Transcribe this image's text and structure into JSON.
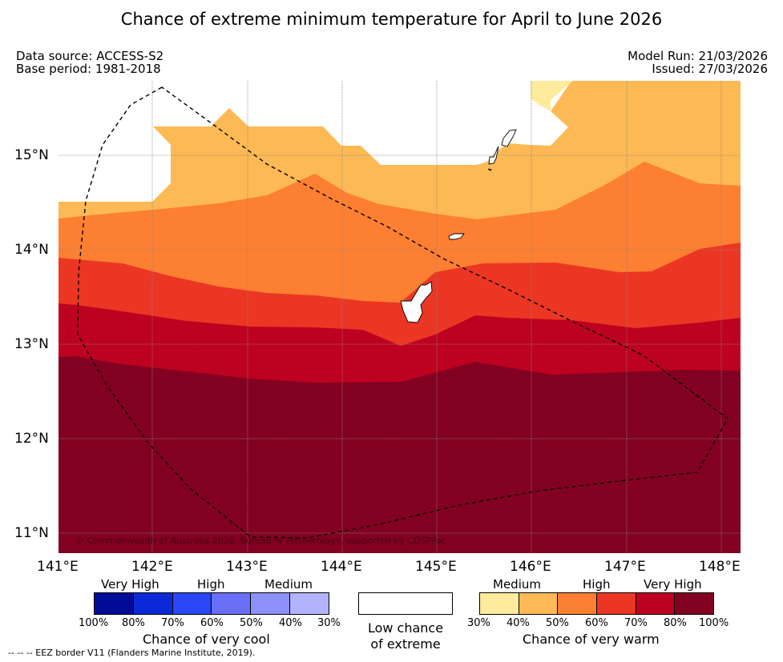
{
  "title": "Chance of extreme minimum temperature for April to June 2026",
  "meta": {
    "data_source": "Data source: ACCESS-S2",
    "base_period": "Base period: 1981-2018",
    "model_run": "Model Run: 21/03/2026",
    "issued": "Issued: 27/03/2026"
  },
  "axes": {
    "lat_labels": [
      "15°N",
      "14°N",
      "13°N",
      "12°N",
      "11°N"
    ],
    "lon_labels": [
      "141°E",
      "142°E",
      "143°E",
      "144°E",
      "145°E",
      "146°E",
      "147°E",
      "148°E"
    ]
  },
  "copyright": "© Commonwealth of Australia 2026, Bureau of Meteorology, supported by COSPPac",
  "legend": {
    "cool": {
      "categories": [
        "Very High",
        "High",
        "Medium"
      ],
      "ticks": [
        "100%",
        "80%",
        "70%",
        "60%",
        "50%",
        "40%",
        "30%"
      ],
      "colors": [
        "#000c96",
        "#0a2ad8",
        "#2b46f4",
        "#6a6ff8",
        "#8e90fa",
        "#b2b3fc"
      ],
      "title": "Chance of very cool"
    },
    "neutral": {
      "title_line1": "Low chance",
      "title_line2": "of extreme",
      "color": "#ffffff"
    },
    "warm": {
      "categories": [
        "Medium",
        "High",
        "Very High"
      ],
      "ticks": [
        "30%",
        "40%",
        "50%",
        "60%",
        "70%",
        "80%",
        "100%"
      ],
      "colors": [
        "#feeb9b",
        "#fdb954",
        "#fd7f31",
        "#eb3624",
        "#bd0120",
        "#830120"
      ],
      "title": "Chance of very warm"
    }
  },
  "footnote": "--  --  -- EEZ border V11 (Flanders Marine Institute, 2019)."
}
